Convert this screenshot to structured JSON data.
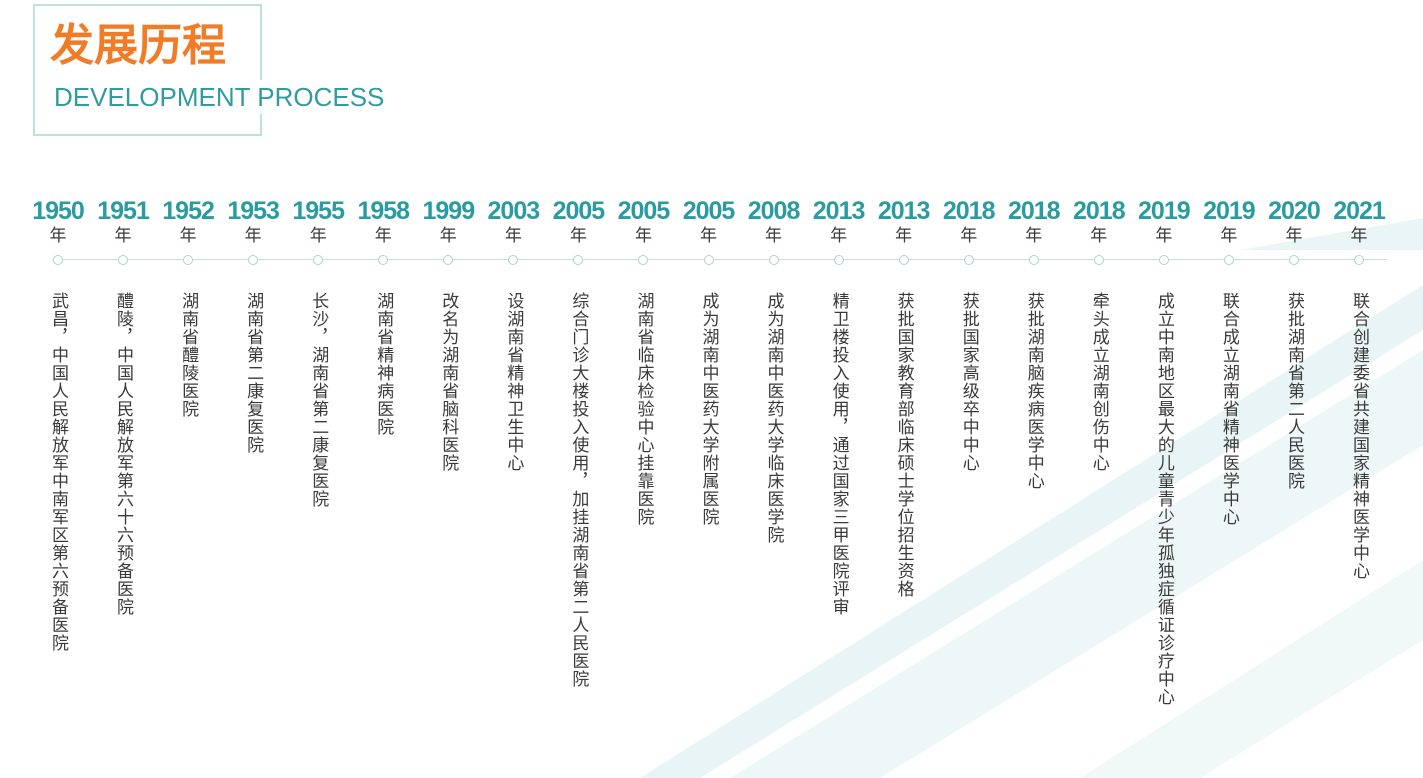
{
  "header": {
    "title_cn": "发展历程",
    "title_en": "DEVELOPMENT PROCESS"
  },
  "colors": {
    "accent_orange": "#f07c27",
    "accent_teal": "#2a9ba0",
    "timeline_line": "#c2dfe1",
    "body_text": "#3a3a3a"
  },
  "timeline": {
    "year_unit": "年",
    "entries": [
      {
        "year": "1950",
        "event": "武昌，中国人民解放军中南军区第六预备医院"
      },
      {
        "year": "1951",
        "event": "醴陵，中国人民解放军第六十六预备医院"
      },
      {
        "year": "1952",
        "event": "湖南省醴陵医院"
      },
      {
        "year": "1953",
        "event": "湖南省第二康复医院"
      },
      {
        "year": "1955",
        "event": "长沙，湖南省第二康复医院"
      },
      {
        "year": "1958",
        "event": "湖南省精神病医院"
      },
      {
        "year": "1999",
        "event": "改名为湖南省脑科医院"
      },
      {
        "year": "2003",
        "event": "设湖南省精神卫生中心"
      },
      {
        "year": "2005",
        "event": "综合门诊大楼投入使用，加挂湖南省第二人民医院"
      },
      {
        "year": "2005",
        "event": "湖南省临床检验中心挂靠医院"
      },
      {
        "year": "2005",
        "event": "成为湖南中医药大学附属医院"
      },
      {
        "year": "2008",
        "event": "成为湖南中医药大学临床医学院"
      },
      {
        "year": "2013",
        "event": "精卫楼投入使用，通过国家三甲医院评审"
      },
      {
        "year": "2013",
        "event": "获批国家教育部临床硕士学位招生资格"
      },
      {
        "year": "2018",
        "event": "获批国家高级卒中中心"
      },
      {
        "year": "2018",
        "event": "获批湖南脑疾病医学中心"
      },
      {
        "year": "2018",
        "event": "牵头成立湖南创伤中心"
      },
      {
        "year": "2019",
        "event": "成立中南地区最大的儿童青少年孤独症循证诊疗中心"
      },
      {
        "year": "2019",
        "event": "联合成立湖南省精神医学中心"
      },
      {
        "year": "2020",
        "event": "获批湖南省第二人民医院"
      },
      {
        "year": "2021",
        "event": "联合创建委省共建国家精神医学中心"
      }
    ]
  }
}
